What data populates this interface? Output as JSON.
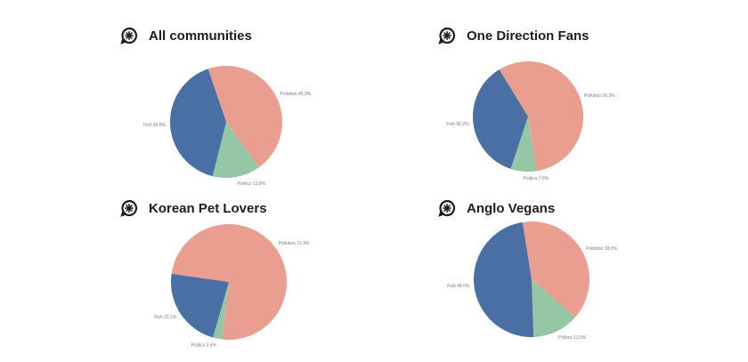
{
  "colors": {
    "pollution": "#ea9e90",
    "fish": "#4a6fa5",
    "politics": "#95c6a5",
    "title": "#1e1e1e"
  },
  "icons": {
    "panel_logo": "community-logo-icon"
  },
  "chart_data": [
    {
      "type": "pie",
      "title": "All communities",
      "slices": [
        {
          "label": "Pollution 45.3%",
          "value": 45.3,
          "color": "#ea9e90"
        },
        {
          "label": "Politics 13.8%",
          "value": 13.8,
          "color": "#95c6a5"
        },
        {
          "label": "Fish 40.8%",
          "value": 40.8,
          "color": "#4a6fa5"
        }
      ]
    },
    {
      "type": "pie",
      "title": "One Direction Fans",
      "slices": [
        {
          "label": "Pollution 56.3%",
          "value": 56.3,
          "color": "#ea9e90"
        },
        {
          "label": "Politics 7.6%",
          "value": 7.6,
          "color": "#95c6a5"
        },
        {
          "label": "Fish 36.2%",
          "value": 36.2,
          "color": "#4a6fa5"
        }
      ]
    },
    {
      "type": "pie",
      "title": "Korean Pet Lovers",
      "slices": [
        {
          "label": "Pollution 72.3%",
          "value": 72.3,
          "color": "#ea9e90"
        },
        {
          "label": "Politics 2.4%",
          "value": 2.4,
          "color": "#95c6a5"
        },
        {
          "label": "Fish 22.1%",
          "value": 22.1,
          "color": "#4a6fa5"
        }
      ]
    },
    {
      "type": "pie",
      "title": "Anglo Vegans",
      "slices": [
        {
          "label": "Pollution 39.0%",
          "value": 39.0,
          "color": "#ea9e90"
        },
        {
          "label": "Politics 13.0%",
          "value": 13.0,
          "color": "#95c6a5"
        },
        {
          "label": "Fish 48.0%",
          "value": 48.0,
          "color": "#4a6fa5"
        }
      ]
    }
  ]
}
